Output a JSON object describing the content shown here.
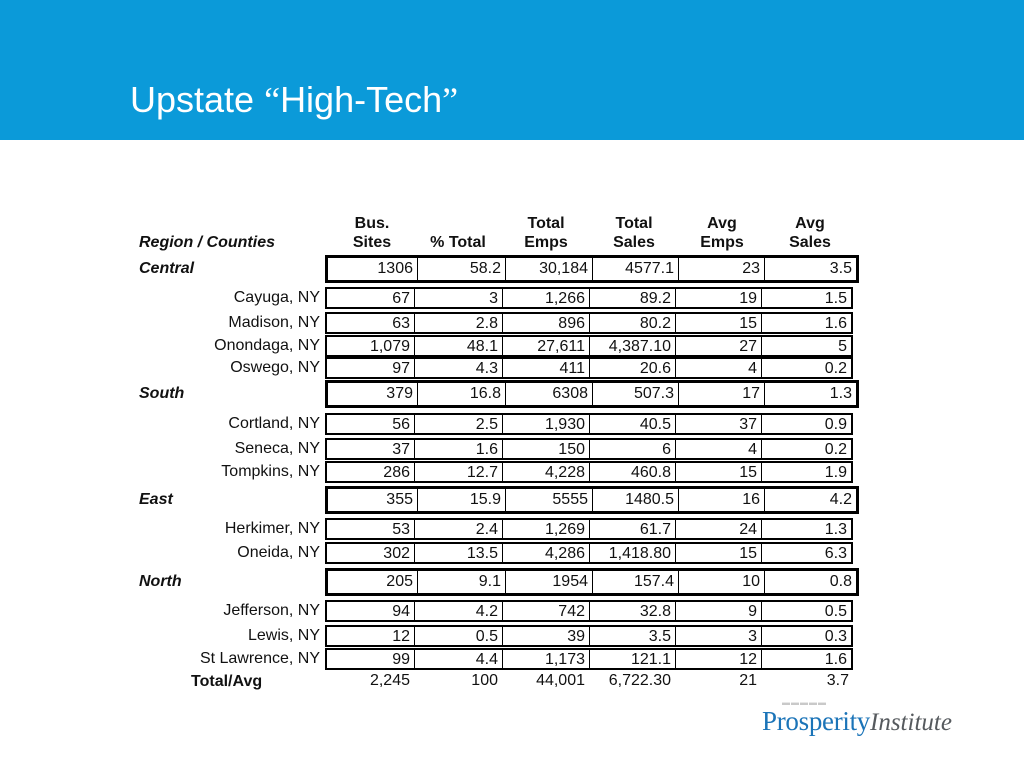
{
  "title": {
    "pre": "Upstate ",
    "open_quote": "“",
    "word": "High-Tech",
    "close_quote": "”"
  },
  "columns": {
    "region": "Region / Counties",
    "bus_sites": [
      "Bus.",
      "Sites"
    ],
    "pct_total": [
      "",
      "% Total"
    ],
    "total_emps": [
      "Total",
      "Emps"
    ],
    "total_sales": [
      "Total",
      "Sales"
    ],
    "avg_emps": [
      "Avg",
      "Emps"
    ],
    "avg_sales": [
      "Avg",
      "Sales"
    ]
  },
  "rows": [
    {
      "type": "region",
      "name": "Central",
      "values": [
        "1306",
        "58.2",
        "30,184",
        "4577.1",
        "23",
        "3.5"
      ]
    },
    {
      "type": "county",
      "name": "Cayuga, NY",
      "values": [
        "67",
        "3",
        "1,266",
        "89.2",
        "19",
        "1.5"
      ]
    },
    {
      "type": "county",
      "name": "Madison, NY",
      "values": [
        "63",
        "2.8",
        "896",
        "80.2",
        "15",
        "1.6"
      ]
    },
    {
      "type": "county",
      "name": "Onondaga, NY",
      "values": [
        "1,079",
        "48.1",
        "27,611",
        "4,387.10",
        "27",
        "5"
      ]
    },
    {
      "type": "county",
      "name": "Oswego, NY",
      "values": [
        "97",
        "4.3",
        "411",
        "20.6",
        "4",
        "0.2"
      ]
    },
    {
      "type": "region",
      "name": "South",
      "values": [
        "379",
        "16.8",
        "6308",
        "507.3",
        "17",
        "1.3"
      ]
    },
    {
      "type": "county",
      "name": "Cortland, NY",
      "values": [
        "56",
        "2.5",
        "1,930",
        "40.5",
        "37",
        "0.9"
      ]
    },
    {
      "type": "county",
      "name": "Seneca, NY",
      "values": [
        "37",
        "1.6",
        "150",
        "6",
        "4",
        "0.2"
      ]
    },
    {
      "type": "county",
      "name": "Tompkins, NY",
      "values": [
        "286",
        "12.7",
        "4,228",
        "460.8",
        "15",
        "1.9"
      ]
    },
    {
      "type": "region",
      "name": "East",
      "values": [
        "355",
        "15.9",
        "5555",
        "1480.5",
        "16",
        "4.2"
      ]
    },
    {
      "type": "county",
      "name": "Herkimer, NY",
      "values": [
        "53",
        "2.4",
        "1,269",
        "61.7",
        "24",
        "1.3"
      ]
    },
    {
      "type": "county",
      "name": "Oneida, NY",
      "values": [
        "302",
        "13.5",
        "4,286",
        "1,418.80",
        "15",
        "6.3"
      ]
    },
    {
      "type": "region",
      "name": "North",
      "values": [
        "205",
        "9.1",
        "1954",
        "157.4",
        "10",
        "0.8"
      ]
    },
    {
      "type": "county",
      "name": "Jefferson, NY",
      "values": [
        "94",
        "4.2",
        "742",
        "32.8",
        "9",
        "0.5"
      ]
    },
    {
      "type": "county",
      "name": "Lewis, NY",
      "values": [
        "12",
        "0.5",
        "39",
        "3.5",
        "3",
        "0.3"
      ]
    },
    {
      "type": "county",
      "name": "St Lawrence, NY",
      "values": [
        "99",
        "4.4",
        "1,173",
        "121.1",
        "12",
        "1.6"
      ]
    },
    {
      "type": "total",
      "name": "Total/Avg",
      "values": [
        "2,245",
        "100",
        "44,001",
        "6,722.30",
        "21",
        "3.7"
      ]
    }
  ],
  "logo": {
    "prosperity": "Prosperity",
    "institute": "Institute"
  },
  "colors": {
    "header": "#0b9ad9",
    "logo_blue": "#1b74b8",
    "logo_gray": "#565a5e"
  }
}
